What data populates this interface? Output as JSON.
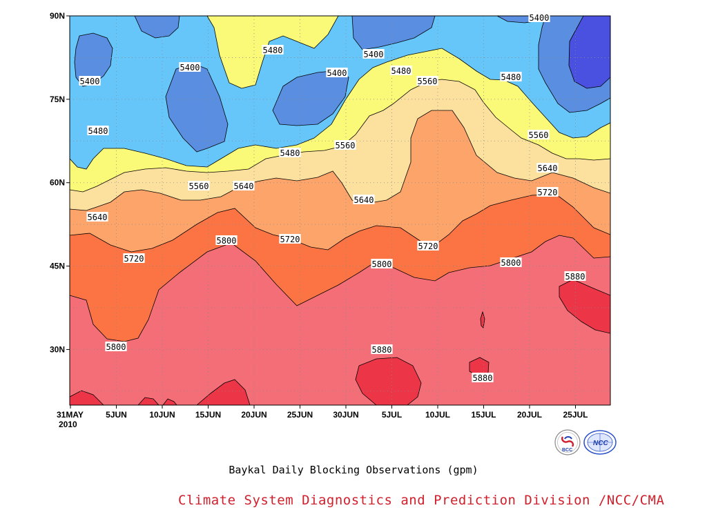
{
  "chart_data": {
    "type": "contour",
    "title": "Baykal Daily Blocking Observations (gpm)",
    "footer": "Climate System Diagnostics and Prediction Division /NCC/CMA",
    "x_ticks": [
      "31MAY",
      "5JUN",
      "10JUN",
      "15JUN",
      "20JUN",
      "25JUN",
      "30JUN",
      "5JUL",
      "10JUL",
      "15JUL",
      "20JUL",
      "25JUL"
    ],
    "x_year": "2010",
    "y_ticks": [
      "30N",
      "45N",
      "60N",
      "75N",
      "90N"
    ],
    "ylim": [
      20,
      90
    ],
    "contour_levels": [
      5400,
      5480,
      5560,
      5640,
      5720,
      5800,
      5880
    ],
    "contour_labels": [
      "5400",
      "5400",
      "5400",
      "5400",
      "5400",
      "5480",
      "5480",
      "5480",
      "5480",
      "5480",
      "5560",
      "5560",
      "5560",
      "5560",
      "5640",
      "5640",
      "5640",
      "5640",
      "5720",
      "5720",
      "5720",
      "5720",
      "5800",
      "5800",
      "5800",
      "5800",
      "5880",
      "5880",
      "5880"
    ],
    "colors": {
      "below_5400": "#4a50e0",
      "5400_5480": "#5a8ee0",
      "5480_5560": "#66c6fa",
      "5560_5640": "#fafa78",
      "5640_5720": "#fce09e",
      "5720_5800": "#fca46a",
      "5800_5880": "#fc7444",
      "above_5880_a": "#f46e78",
      "above_5880_b": "#ec3648"
    },
    "logos": [
      "BCC",
      "NCC"
    ]
  }
}
